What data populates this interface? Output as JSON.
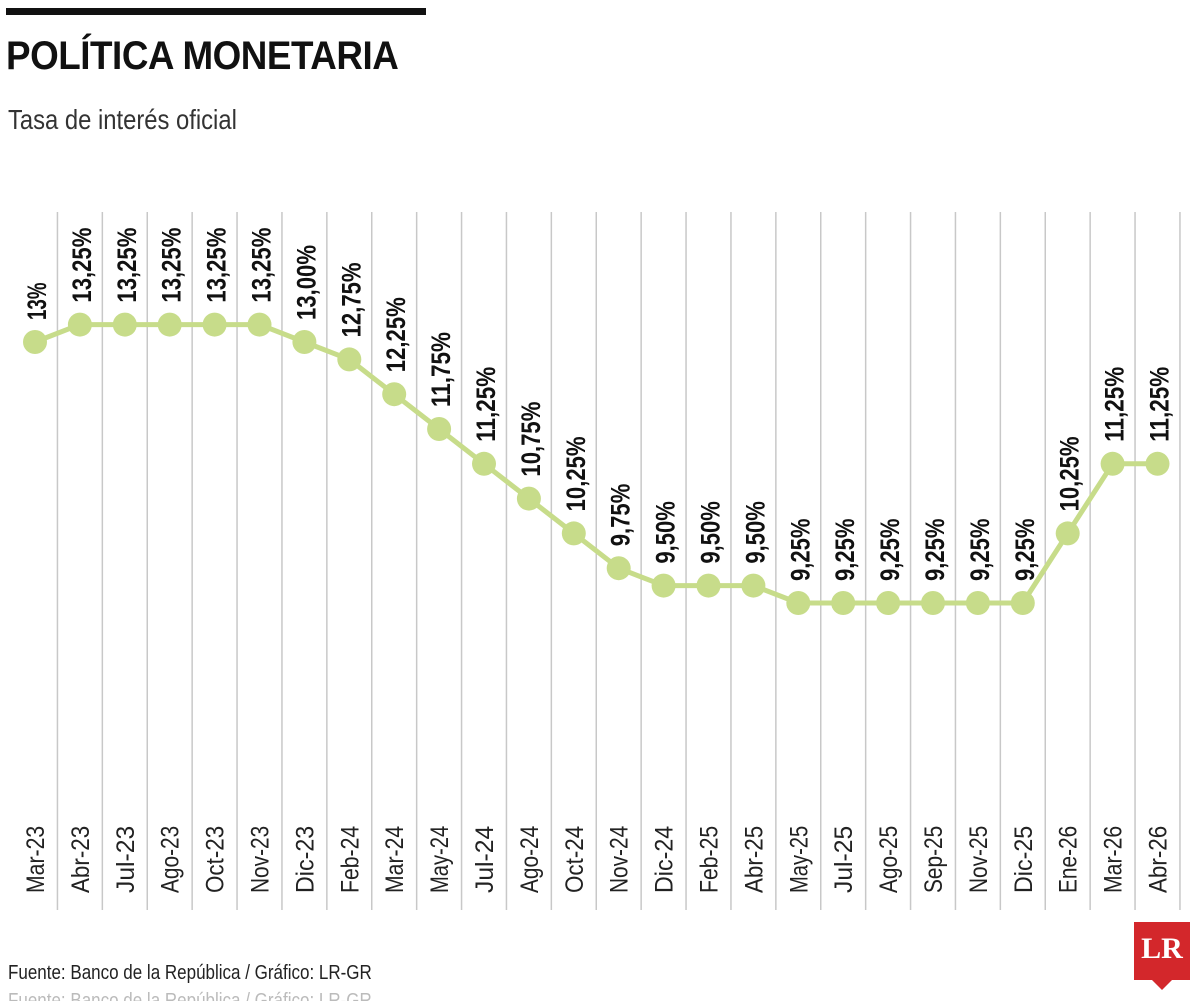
{
  "header": {
    "title": "POLÍTICA MONETARIA",
    "subtitle": "Tasa de interés oficial"
  },
  "footer": {
    "source": "Fuente: Banco de la República / Gráfico: LR-GR",
    "logo_text": "LR"
  },
  "colors": {
    "line": "#c7dc8a",
    "marker": "#c7dc8a",
    "grid": "#c8c8c8",
    "text": "#111111",
    "logo_bg": "#d3272b"
  },
  "chart_data": {
    "type": "line",
    "title": "POLÍTICA MONETARIA",
    "subtitle": "Tasa de interés oficial",
    "xlabel": "",
    "ylabel": "",
    "grid": "vertical",
    "categories": [
      "Mar-23",
      "Abr-23",
      "Jul-23",
      "Ago-23",
      "Oct-23",
      "Nov-23",
      "Dic-23",
      "Feb-24",
      "Mar-24",
      "May-24",
      "Jul-24",
      "Ago-24",
      "Oct-24",
      "Nov-24",
      "Dic-24",
      "Feb-25",
      "Abr-25",
      "May-25",
      "Jul-25",
      "Ago-25",
      "Sep-25",
      "Nov-25",
      "Dic-25",
      "Ene-26",
      "Mar-26",
      "Abr-26"
    ],
    "series": [
      {
        "values": [
          13,
          13.25,
          13.25,
          13.25,
          13.25,
          13.25,
          13.0,
          12.75,
          12.25,
          11.75,
          11.25,
          10.75,
          10.25,
          9.75,
          9.5,
          9.5,
          9.5,
          9.25,
          9.25,
          9.25,
          9.25,
          9.25,
          9.25,
          10.25,
          11.25,
          11.25
        ],
        "data_labels": [
          "13%",
          "13,25%",
          "13,25%",
          "13,25%",
          "13,25%",
          "13,25%",
          "13,00%",
          "12,75%",
          "12,25%",
          "11,75%",
          "11,25%",
          "10,75%",
          "10,25%",
          "9,75%",
          "9,50%",
          "9,50%",
          "9,50%",
          "9,25%",
          "9,25%",
          "9,25%",
          "9,25%",
          "9,25%",
          "9,25%",
          "10,25%",
          "11,25%",
          "11,25%"
        ]
      }
    ]
  }
}
